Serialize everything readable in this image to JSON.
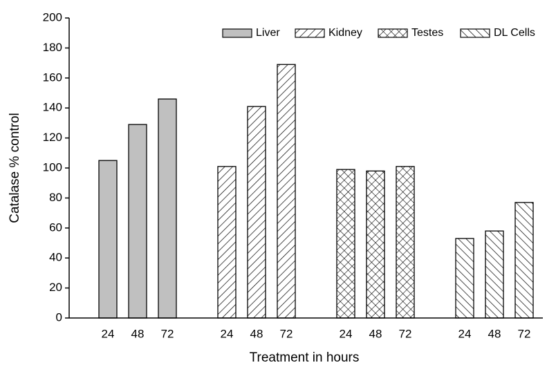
{
  "chart_data": {
    "type": "bar",
    "x_label": "Treatment in hours",
    "y_label": "Catalase % control",
    "categories": [
      "24",
      "48",
      "72"
    ],
    "series": [
      {
        "name": "Liver",
        "color": "#c0c0c0",
        "pattern": "solid",
        "values": [
          105,
          129,
          146
        ]
      },
      {
        "name": "Kidney",
        "color": "#000000",
        "pattern": "forward-hatch",
        "values": [
          101,
          141,
          169
        ]
      },
      {
        "name": "Testes",
        "color": "#000000",
        "pattern": "cross-hatch",
        "values": [
          99,
          98,
          101
        ]
      },
      {
        "name": "DL Cells",
        "color": "#000000",
        "pattern": "back-hatch",
        "values": [
          53,
          58,
          77
        ]
      }
    ],
    "ylim": [
      0,
      200
    ],
    "yticks": [
      0,
      20,
      40,
      60,
      80,
      100,
      120,
      140,
      160,
      180,
      200
    ],
    "legend": "upper right",
    "grid": false
  }
}
